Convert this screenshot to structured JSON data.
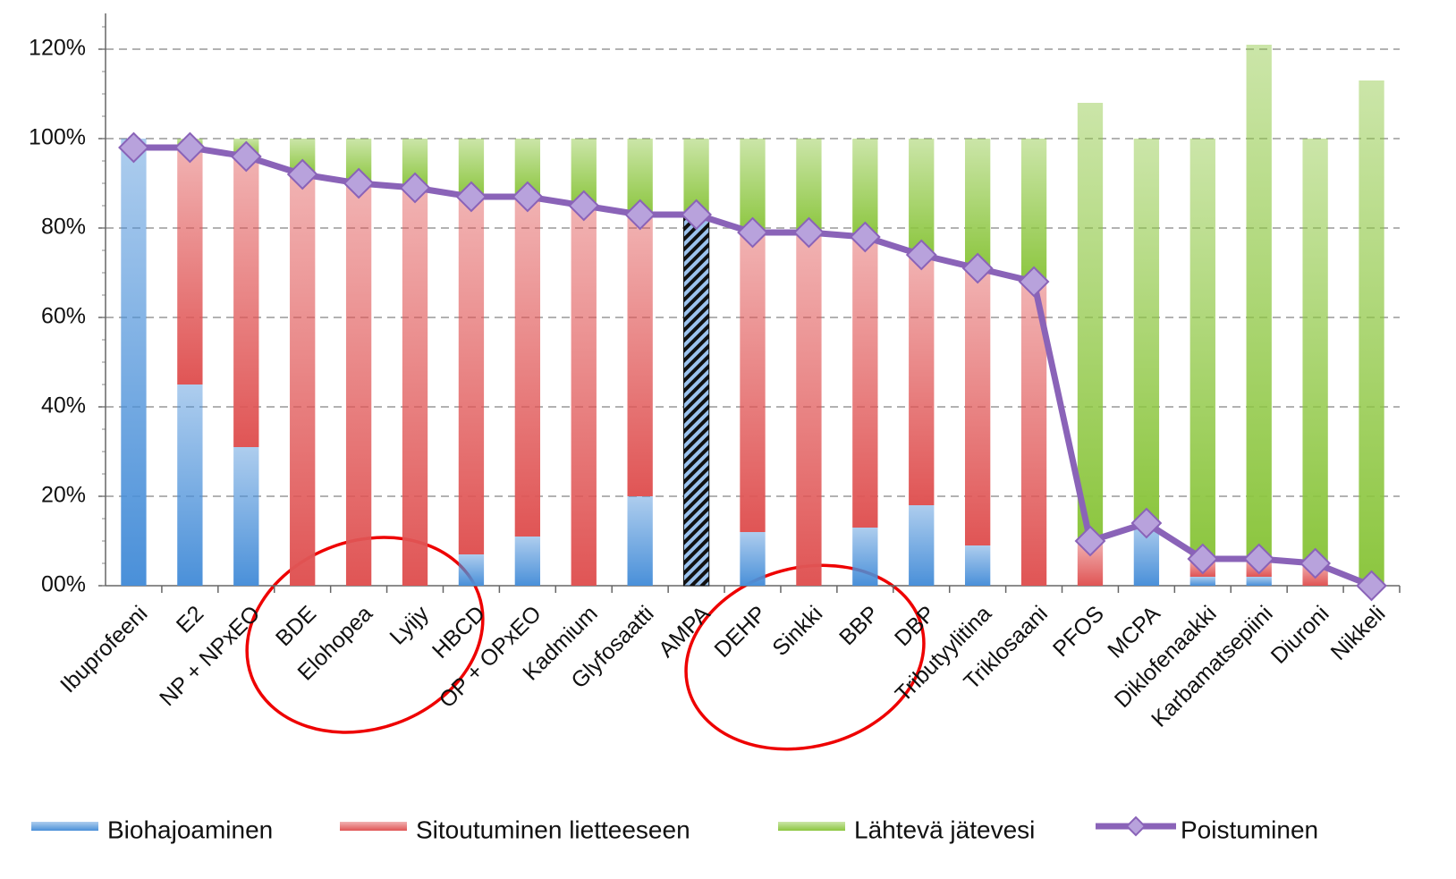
{
  "chart_data": {
    "type": "bar",
    "stacked": true,
    "categories": [
      "Ibuprofeeni",
      "E2",
      "NP + NPxEO",
      "BDE",
      "Elohopea",
      "Lyijy",
      "HBCD",
      "OP + OPxEO",
      "Kadmium",
      "Glyfosaatti",
      "AMPA",
      "DEHP",
      "Sinkki",
      "BBP",
      "DBP",
      "Tributyylitina",
      "Triklosaani",
      "PFOS",
      "MCPA",
      "Diklofenaakki",
      "Karbamatsepiini",
      "Diuroni",
      "Nikkeli"
    ],
    "series": [
      {
        "name": "Biohajoaminen",
        "type": "bar",
        "color": "#4a90d9",
        "values": [
          100,
          45,
          31,
          0,
          0,
          0,
          7,
          11,
          0,
          20,
          83,
          12,
          0,
          13,
          18,
          9,
          0,
          0,
          14,
          2,
          2,
          0,
          0
        ],
        "patterns": [
          null,
          null,
          null,
          null,
          null,
          null,
          null,
          null,
          null,
          null,
          "hatch",
          null,
          null,
          null,
          null,
          null,
          null,
          null,
          null,
          null,
          null,
          null,
          null
        ]
      },
      {
        "name": "Sitoutuminen lietteeseen",
        "type": "bar",
        "color": "#e05555",
        "values": [
          0,
          53,
          65,
          92,
          90,
          89,
          80,
          76,
          85,
          63,
          0,
          67,
          79,
          65,
          56,
          62,
          68,
          10,
          0,
          4,
          4,
          5,
          0
        ]
      },
      {
        "name": "Lähtevä jätevesi",
        "type": "bar",
        "color": "#8cc63f",
        "values": [
          0,
          2,
          4,
          8,
          10,
          11,
          13,
          13,
          15,
          17,
          17,
          21,
          21,
          22,
          26,
          29,
          32,
          98,
          86,
          94,
          115,
          95,
          113
        ]
      },
      {
        "name": "Poistuminen",
        "type": "line",
        "color": "#8a63b8",
        "marker_color": "#b8a2dc",
        "values": [
          98,
          98,
          96,
          92,
          90,
          89,
          87,
          87,
          85,
          83,
          83,
          79,
          79,
          78,
          74,
          71,
          68,
          10,
          14,
          6,
          6,
          5,
          0
        ]
      }
    ],
    "ylim": [
      0,
      128
    ],
    "yticks": [
      {
        "value": 0,
        "label": "00%"
      },
      {
        "value": 20,
        "label": "20%"
      },
      {
        "value": 40,
        "label": "40%"
      },
      {
        "value": 60,
        "label": "60%"
      },
      {
        "value": 80,
        "label": "80%"
      },
      {
        "value": 100,
        "label": "100%"
      },
      {
        "value": 120,
        "label": "120%"
      }
    ],
    "grid": true,
    "legend": "bottom"
  }
}
